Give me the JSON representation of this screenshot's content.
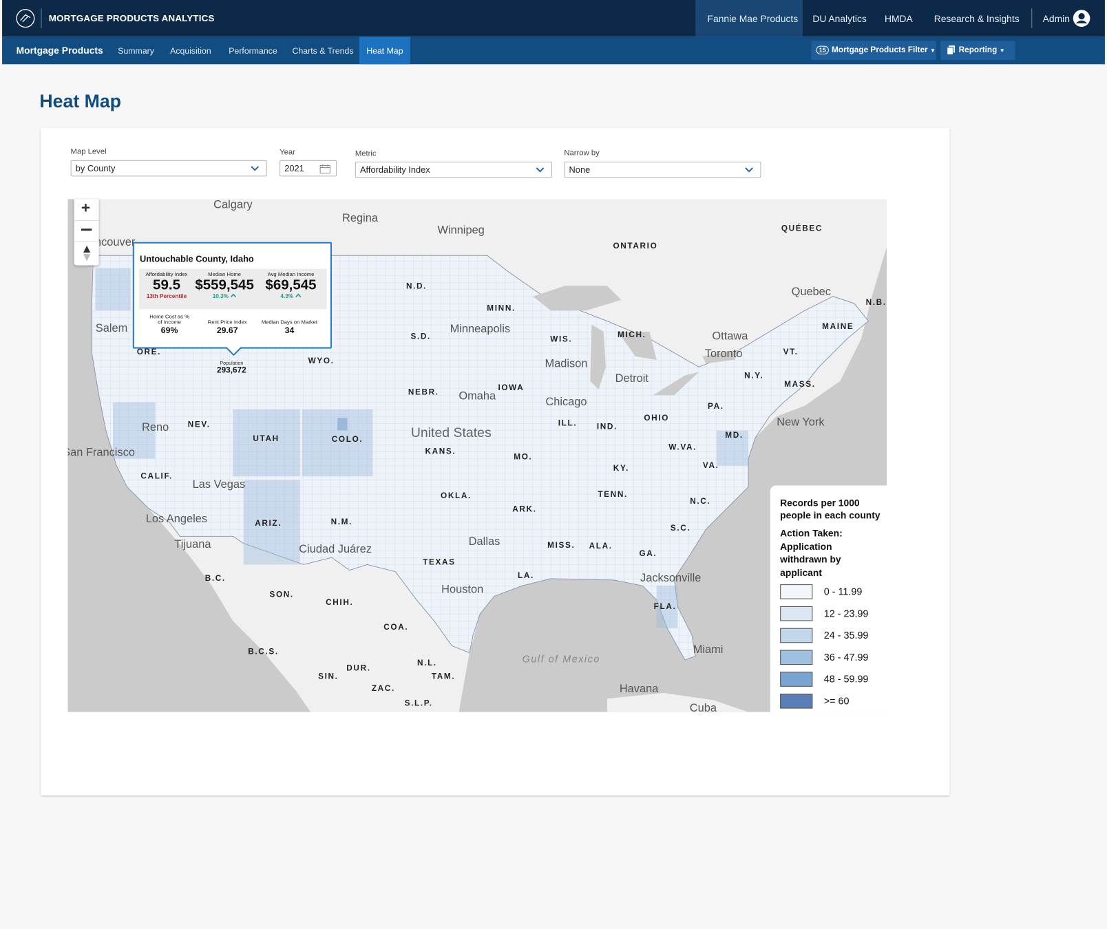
{
  "header": {
    "brand": "MORTGAGE PRODUCTS ANALYTICS",
    "nav": [
      "Fannie Mae Products",
      "DU Analytics",
      "HMDA",
      "Research & Insights"
    ],
    "user": "Admin"
  },
  "subnav": {
    "title": "Mortgage Products",
    "tabs": [
      "Summary",
      "Acquisition",
      "Performance",
      "Charts & Trends",
      "Heat Map"
    ],
    "filter_count": 15,
    "filter": "Mortgage Products Filter",
    "reporting": "Reporting"
  },
  "page": {
    "title": "Heat Map"
  },
  "controls": [
    {
      "label": "Map Level",
      "value": "by County"
    },
    {
      "label": "Year",
      "value": 2021
    },
    {
      "label": "Metric",
      "value": "Affordability Index"
    },
    {
      "label": "Narrow by",
      "value": "None"
    }
  ],
  "map": {
    "labels": [
      "Calgary",
      "Regina",
      "Winnipeg",
      "ncouver",
      "Quebec",
      "Ottawa",
      "Toronto",
      "Minneapolis",
      "Madison",
      "Detroit",
      "Chicago",
      "Omaha",
      "New York",
      "Salem",
      "Reno",
      "San Francisco",
      "Las Vegas",
      "Los Angeles",
      "Tijuana",
      "Ciudad Juárez",
      "Dallas",
      "Houston",
      "Jacksonville",
      "Miami",
      "Havana",
      "Cuba",
      "United States",
      "Gulf of Mexico",
      "ONTARIO",
      "QUÉBEC",
      "N.B.",
      "MAINE",
      "VT.",
      "N.Y.",
      "MASS.",
      "PA.",
      "MD.",
      "N.D.",
      "MINN.",
      "S.D.",
      "WIS.",
      "MICH.",
      "WYO.",
      "ORE.",
      "NEBR.",
      "IOWA",
      "NEV.",
      "UTAH",
      "COLO.",
      "ILL.",
      "IND.",
      "OHIO",
      "W.VA.",
      "VA.",
      "KANS.",
      "MO.",
      "KY.",
      "CALIF.",
      "OKLA.",
      "ARK.",
      "TENN.",
      "N.C.",
      "ARIZ.",
      "N.M.",
      "S.C.",
      "MISS.",
      "ALA.",
      "GA.",
      "TEXAS",
      "LA.",
      "FLA.",
      "B.C.",
      "SON.",
      "CHIH.",
      "COA.",
      "B.C.S.",
      "DUR.",
      "N.L.",
      "SIN.",
      "TAM.",
      "ZAC.",
      "S.L.P."
    ],
    "tooltip": {
      "title": "Untouchable County, Idaho",
      "metrics": [
        {
          "label": "Affordability Index",
          "value": 59.5,
          "note": "13th Percentile"
        },
        {
          "label": "Median Home",
          "value": "$559,545",
          "change": "10.3%"
        },
        {
          "label": "Avg Median Income",
          "value": "$69,545",
          "change": "4.3%"
        }
      ],
      "details": [
        {
          "label": "Home Cost as % of Income",
          "value": "69%"
        },
        {
          "label": "Rent Price Index",
          "value": 29.67
        },
        {
          "label": "Median Days on Market",
          "value": 34
        }
      ],
      "population_label": "Population",
      "population": "293,672"
    },
    "legend": {
      "title": "Records per 1000 people in each county",
      "subtitle": "Action Taken: Application withdrawn by applicant",
      "bins": [
        {
          "label": "0 - 11.99",
          "color": "#f3f6fb"
        },
        {
          "label": "12 - 23.99",
          "color": "#dce7f3"
        },
        {
          "label": "24 - 35.99",
          "color": "#c2d7ea"
        },
        {
          "label": "36 - 47.99",
          "color": "#9fc0df"
        },
        {
          "label": "48 - 59.99",
          "color": "#7ba4d2"
        },
        {
          "label": ">= 60",
          "color": "#5a7eb7"
        }
      ]
    }
  }
}
